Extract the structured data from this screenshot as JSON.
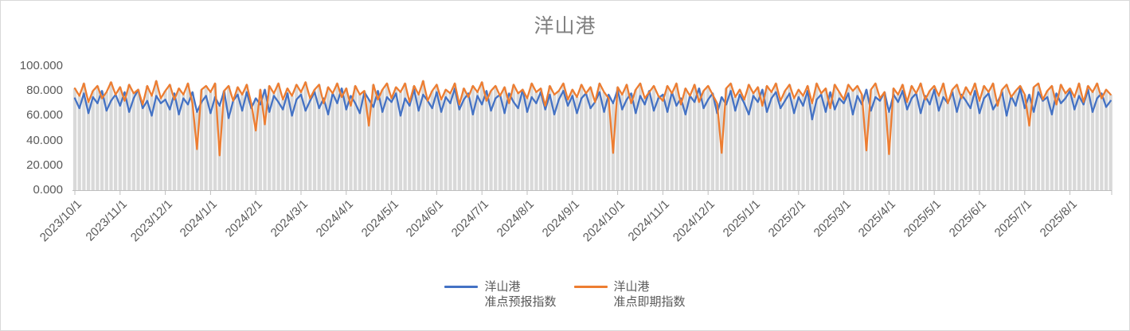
{
  "styles": {
    "background": "#FFFFFF",
    "border_color": "#D9D9D9",
    "title_color": "#7F7F7F",
    "axis_color": "#BFBFBF",
    "tick_label_color": "#595959",
    "forecast_color": "#4472C4",
    "spot_color": "#ED7D31",
    "background_bar_color": "#D9D9D9"
  },
  "chart_data": {
    "type": "line",
    "title": "洋山港",
    "grid": "off",
    "legend_position": "bottom-center",
    "ylim": [
      0,
      100
    ],
    "y_ticks": [
      0,
      20,
      40,
      60,
      80,
      100
    ],
    "y_tick_format_decimals": 3,
    "x_tick_labels": [
      "2023/10/1",
      "2023/11/1",
      "2023/12/1",
      "2024/1/1",
      "2024/2/1",
      "2024/3/1",
      "2024/4/1",
      "2024/5/1",
      "2024/6/1",
      "2024/7/1",
      "2024/8/1",
      "2024/9/1",
      "2024/10/1",
      "2024/11/1",
      "2024/12/1",
      "2025/1/1",
      "2025/2/1",
      "2025/3/1",
      "2025/4/1",
      "2025/5/1",
      "2025/6/1",
      "2025/7/1",
      "2025/8/1"
    ],
    "points_per_month": 10,
    "background_bars": {
      "color": "#D9D9D9",
      "derive": "max of the two series at each point"
    },
    "series": [
      {
        "name": "洋山港 准点预报指数",
        "color": "#4472C4",
        "values": [
          74,
          66,
          78,
          62,
          75,
          70,
          80,
          64,
          72,
          77,
          68,
          79,
          63,
          74,
          81,
          66,
          72,
          60,
          76,
          70,
          73,
          65,
          78,
          61,
          74,
          69,
          79,
          63,
          71,
          76,
          62,
          75,
          68,
          80,
          58,
          72,
          77,
          64,
          79,
          66,
          74,
          69,
          81,
          63,
          76,
          71,
          65,
          78,
          60,
          73,
          77,
          64,
          72,
          79,
          66,
          74,
          61,
          78,
          70,
          82,
          65,
          76,
          70,
          62,
          79,
          73,
          67,
          80,
          63,
          75,
          71,
          78,
          60,
          74,
          68,
          81,
          64,
          77,
          72,
          66,
          79,
          63,
          75,
          70,
          82,
          65,
          73,
          78,
          61,
          76,
          69,
          80,
          64,
          74,
          77,
          62,
          78,
          71,
          66,
          81,
          63,
          75,
          70,
          79,
          65,
          77,
          61,
          73,
          80,
          68,
          76,
          62,
          74,
          78,
          66,
          71,
          79,
          63,
          77,
          70,
          81,
          65,
          73,
          78,
          62,
          76,
          69,
          80,
          64,
          74,
          77,
          63,
          79,
          68,
          74,
          61,
          76,
          71,
          82,
          66,
          73,
          78,
          62,
          75,
          69,
          80,
          64,
          77,
          70,
          61,
          76,
          71,
          81,
          63,
          74,
          79,
          66,
          72,
          78,
          62,
          75,
          68,
          80,
          57,
          73,
          77,
          63,
          79,
          65,
          74,
          70,
          78,
          61,
          76,
          69,
          81,
          64,
          75,
          72,
          79,
          63,
          77,
          71,
          80,
          65,
          74,
          78,
          62,
          76,
          69,
          81,
          64,
          75,
          70,
          79,
          63,
          77,
          72,
          66,
          80,
          62,
          74,
          78,
          65,
          71,
          79,
          60,
          76,
          68,
          82,
          66,
          77,
          63,
          79,
          72,
          75,
          61,
          78,
          70,
          74,
          80,
          65,
          76,
          69,
          81,
          63,
          74,
          78,
          67,
          72
        ]
      },
      {
        "name": "洋山港 准点即期指数",
        "color": "#ED7D31",
        "values": [
          82,
          76,
          86,
          71,
          80,
          84,
          74,
          79,
          87,
          77,
          83,
          72,
          85,
          78,
          81,
          69,
          84,
          76,
          88,
          74,
          80,
          85,
          73,
          82,
          77,
          86,
          70,
          33,
          81,
          84,
          79,
          86,
          28,
          80,
          84,
          72,
          83,
          77,
          85,
          70,
          48,
          81,
          53,
          84,
          78,
          86,
          73,
          82,
          76,
          85,
          79,
          87,
          74,
          81,
          85,
          70,
          83,
          78,
          86,
          75,
          82,
          68,
          84,
          77,
          80,
          52,
          85,
          73,
          81,
          86,
          74,
          83,
          79,
          86,
          71,
          84,
          77,
          88,
          72,
          80,
          85,
          73,
          81,
          78,
          86,
          69,
          82,
          75,
          84,
          79,
          87,
          72,
          80,
          84,
          76,
          83,
          70,
          85,
          78,
          81,
          74,
          86,
          79,
          82,
          68,
          84,
          77,
          80,
          86,
          73,
          81,
          75,
          85,
          78,
          83,
          71,
          86,
          79,
          74,
          30,
          83,
          77,
          85,
          70,
          81,
          86,
          74,
          79,
          84,
          76,
          72,
          84,
          78,
          86,
          69,
          82,
          76,
          85,
          71,
          80,
          84,
          77,
          70,
          30,
          82,
          86,
          75,
          81,
          73,
          85,
          78,
          83,
          68,
          84,
          79,
          86,
          72,
          80,
          85,
          74,
          81,
          76,
          84,
          70,
          86,
          78,
          82,
          66,
          85,
          79,
          73,
          85,
          80,
          84,
          77,
          32,
          81,
          86,
          74,
          79,
          29,
          82,
          77,
          85,
          71,
          84,
          78,
          86,
          73,
          80,
          84,
          76,
          86,
          70,
          81,
          85,
          74,
          83,
          77,
          86,
          72,
          84,
          79,
          86,
          68,
          81,
          85,
          75,
          80,
          84,
          77,
          52,
          83,
          86,
          73,
          80,
          84,
          69,
          85,
          78,
          82,
          75,
          86,
          71,
          84,
          79,
          86,
          74,
          81,
          77
        ]
      }
    ]
  },
  "legend": {
    "entries": [
      {
        "lines": [
          "洋山港",
          "准点预报指数"
        ],
        "color": "#4472C4"
      },
      {
        "lines": [
          "洋山港",
          "准点即期指数"
        ],
        "color": "#ED7D31"
      }
    ]
  }
}
